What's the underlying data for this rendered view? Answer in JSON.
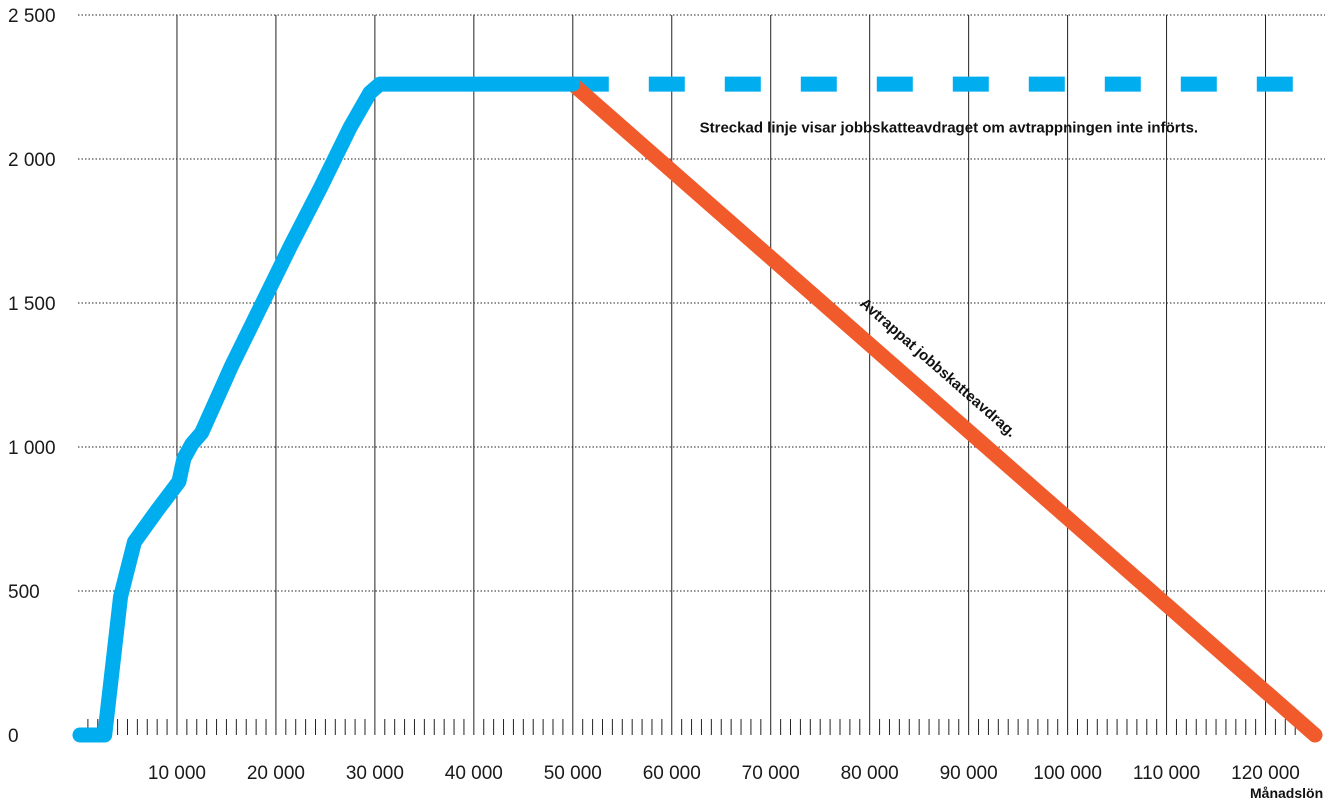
{
  "chart_data": {
    "type": "line",
    "title": "",
    "xlabel": "Månadslön",
    "ylabel": "",
    "xlim": [
      0,
      125000
    ],
    "ylim": [
      0,
      2500
    ],
    "x_ticks": [
      10000,
      20000,
      30000,
      40000,
      50000,
      60000,
      70000,
      80000,
      90000,
      100000,
      110000,
      120000
    ],
    "x_tick_labels": [
      "10 000",
      "20 000",
      "30 000",
      "40 000",
      "50 000",
      "60 000",
      "70 000",
      "80 000",
      "90 000",
      "100 000",
      "110 000",
      "120 000"
    ],
    "y_ticks": [
      0,
      500,
      1000,
      1500,
      2000,
      2500
    ],
    "y_tick_labels": [
      "0",
      "500",
      "1 000",
      "1 500",
      "2 000",
      "2 500"
    ],
    "grid": {
      "vertical_solid": true,
      "horizontal_dotted": true
    },
    "colors": {
      "blue": "#00aeef",
      "orange": "#f15a2b",
      "grid": "#222222"
    },
    "series": [
      {
        "color": "#00aeef",
        "style": "solid",
        "x": [
          200,
          1500,
          2700,
          4300,
          5700,
          8000,
          10200,
          10700,
          11500,
          12500,
          15500,
          18500,
          21500,
          24500,
          27500,
          29500,
          30500,
          31500,
          50000
        ],
        "y": [
          0,
          0,
          0,
          480,
          670,
          780,
          880,
          960,
          1010,
          1050,
          1280,
          1490,
          1700,
          1900,
          2110,
          2230,
          2260,
          2260,
          2260
        ]
      },
      {
        "color": "#00aeef",
        "style": "dashed",
        "x": [
          50000,
          125000
        ],
        "y": [
          2260,
          2260
        ]
      },
      {
        "color": "#f15a2b",
        "style": "solid",
        "x": [
          50000,
          125000
        ],
        "y": [
          2260,
          0
        ]
      }
    ],
    "annotations": [
      {
        "text": "Streckad linje visar jobbskatteavdraget om avtrappningen inte införts.",
        "x": 88000,
        "y": 2110
      },
      {
        "text": "Avtrappat jobbskatteavdrag.",
        "x": 90000,
        "y": 1080
      }
    ]
  }
}
